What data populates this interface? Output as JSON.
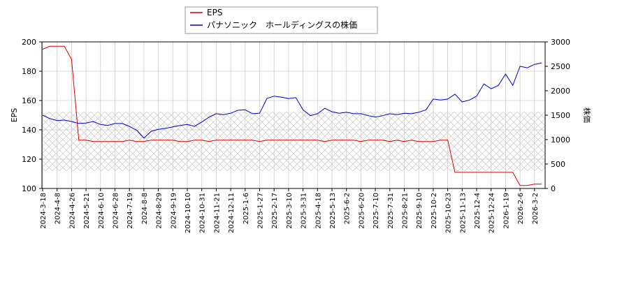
{
  "chart_data": {
    "type": "line",
    "legend_position": "upper center",
    "grid": true,
    "ylabel": "EPS",
    "y2label": "株価",
    "categories": [
      "2024-3-18",
      null,
      "2024-4-8",
      null,
      "2024-4-26",
      null,
      "2024-5-21",
      null,
      "2024-6-10",
      null,
      "2024-6-28",
      null,
      "2024-7-19",
      null,
      "2024-8-8",
      null,
      "2024-8-29",
      null,
      "2024-9-19",
      null,
      "2024-10-10",
      null,
      "2024-10-31",
      null,
      "2024-11-21",
      null,
      "2024-12-11",
      null,
      "2025-1-6",
      null,
      "2025-1-27",
      null,
      "2025-2-17",
      null,
      "2025-3-10",
      null,
      "2025-3-31",
      null,
      "2025-4-18",
      null,
      "2025-5-13",
      null,
      "2025-6-2",
      null,
      "2025-6-20",
      null,
      "2025-7-10",
      null,
      "2025-7-31",
      null,
      "2025-8-21",
      null,
      "2025-9-10",
      null,
      "2025-10-2",
      null,
      "2025-10-23",
      null,
      "2025-11-13",
      null,
      "2025-12-4",
      null,
      "2025-12-24",
      null,
      "2026-1-19",
      null,
      "2026-2-6",
      null,
      "2026-3-2",
      null
    ],
    "series": [
      {
        "name": "EPS",
        "color": "#dd0000",
        "axis": "y",
        "values": [
          195,
          197,
          197,
          197,
          188,
          133,
          133,
          132,
          132,
          132,
          132,
          132,
          133,
          132,
          132,
          133,
          133,
          133,
          133,
          132,
          132,
          133,
          133,
          132,
          133,
          133,
          133,
          133,
          133,
          133,
          132,
          133,
          133,
          133,
          133,
          133,
          133,
          133,
          133,
          132,
          133,
          133,
          133,
          133,
          132,
          133,
          133,
          133,
          132,
          133,
          132,
          133,
          132,
          132,
          132,
          133,
          133,
          111,
          111,
          111,
          111,
          111,
          111,
          111,
          111,
          111,
          102,
          102,
          103,
          103
        ]
      },
      {
        "name": "パナソニック　ホールディングスの株価",
        "color": "#0000cc",
        "axis": "y2",
        "values": [
          1500,
          1430,
          1390,
          1400,
          1370,
          1330,
          1340,
          1370,
          1310,
          1290,
          1330,
          1330,
          1270,
          1190,
          1030,
          1170,
          1210,
          1230,
          1260,
          1290,
          1310,
          1270,
          1360,
          1460,
          1530,
          1510,
          1540,
          1600,
          1610,
          1530,
          1540,
          1840,
          1890,
          1870,
          1840,
          1860,
          1610,
          1490,
          1530,
          1640,
          1570,
          1540,
          1560,
          1530,
          1530,
          1490,
          1460,
          1490,
          1530,
          1510,
          1540,
          1530,
          1560,
          1610,
          1830,
          1810,
          1830,
          1930,
          1770,
          1810,
          1890,
          2140,
          2040,
          2110,
          2340,
          2110,
          2500,
          2470,
          2540,
          2570
        ]
      }
    ],
    "ylim": [
      100,
      200
    ],
    "yticks": [
      100,
      120,
      140,
      160,
      180,
      200
    ],
    "y2lim": [
      0,
      3000
    ],
    "y2ticks": [
      0,
      500,
      1000,
      1500,
      2000,
      2500,
      3000
    ]
  }
}
